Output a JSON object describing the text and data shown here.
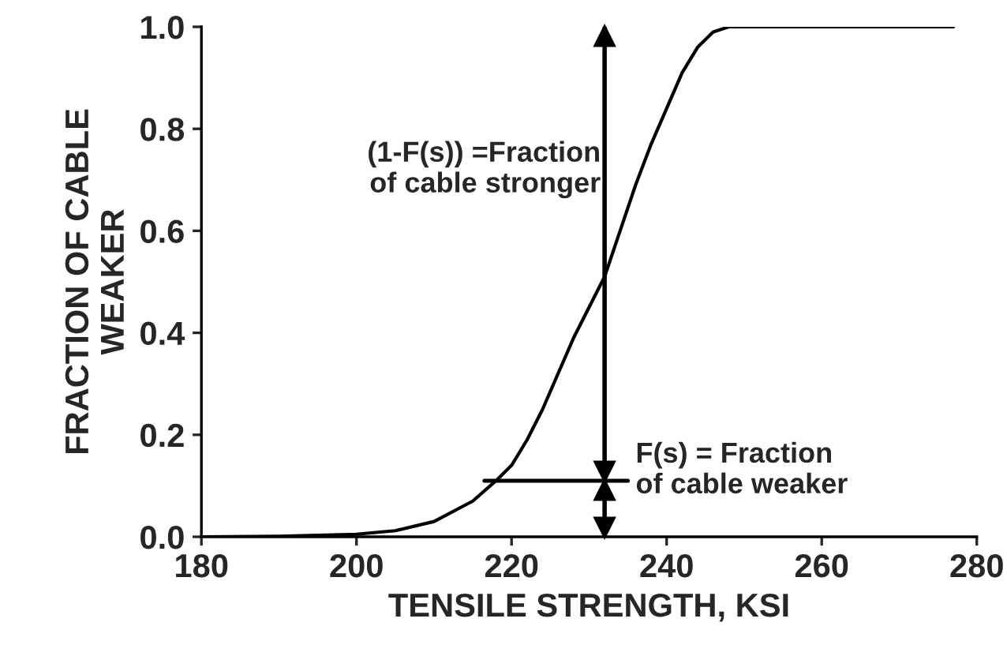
{
  "chart_data": {
    "type": "line",
    "xlabel": "TENSILE STRENGTH, KSI",
    "ylabel": "FRACTION OF CABLE\nWEAKER",
    "x": [
      180,
      190,
      200,
      205,
      210,
      215,
      218,
      220,
      222,
      224,
      226,
      228,
      230,
      232,
      234,
      236,
      238,
      240,
      242,
      244,
      246,
      248,
      250,
      260,
      270,
      277
    ],
    "series": [
      {
        "color": "#000000",
        "values": [
          0,
          0.001,
          0.005,
          0.012,
          0.03,
          0.07,
          0.11,
          0.14,
          0.19,
          0.25,
          0.32,
          0.39,
          0.45,
          0.51,
          0.6,
          0.69,
          0.77,
          0.84,
          0.91,
          0.96,
          0.99,
          1.0,
          1.0,
          1.0,
          1.0,
          1.0
        ]
      }
    ],
    "xlim": [
      180,
      280
    ],
    "xticks": [
      180,
      200,
      220,
      240,
      260,
      280
    ],
    "ylim": [
      0,
      1.0
    ],
    "yticks": [
      {
        "value": 0,
        "label": "0.0"
      },
      {
        "value": 0.2,
        "label": "0.2"
      },
      {
        "value": 0.4,
        "label": "0.4"
      },
      {
        "value": 0.6,
        "label": "0.6"
      },
      {
        "value": 0.8,
        "label": "0.8"
      },
      {
        "value": 1.0,
        "label": "1.0"
      }
    ],
    "grid": false,
    "marker": "none",
    "line_style": "solid",
    "ref_lines": [
      {
        "axis": "x",
        "value": 232
      },
      {
        "axis": "y",
        "value": 0.11
      }
    ],
    "annotations": [
      "(1-F(s)) =Fraction\nof cable stronger",
      "F(s) = Fraction\nof cable weaker"
    ]
  }
}
